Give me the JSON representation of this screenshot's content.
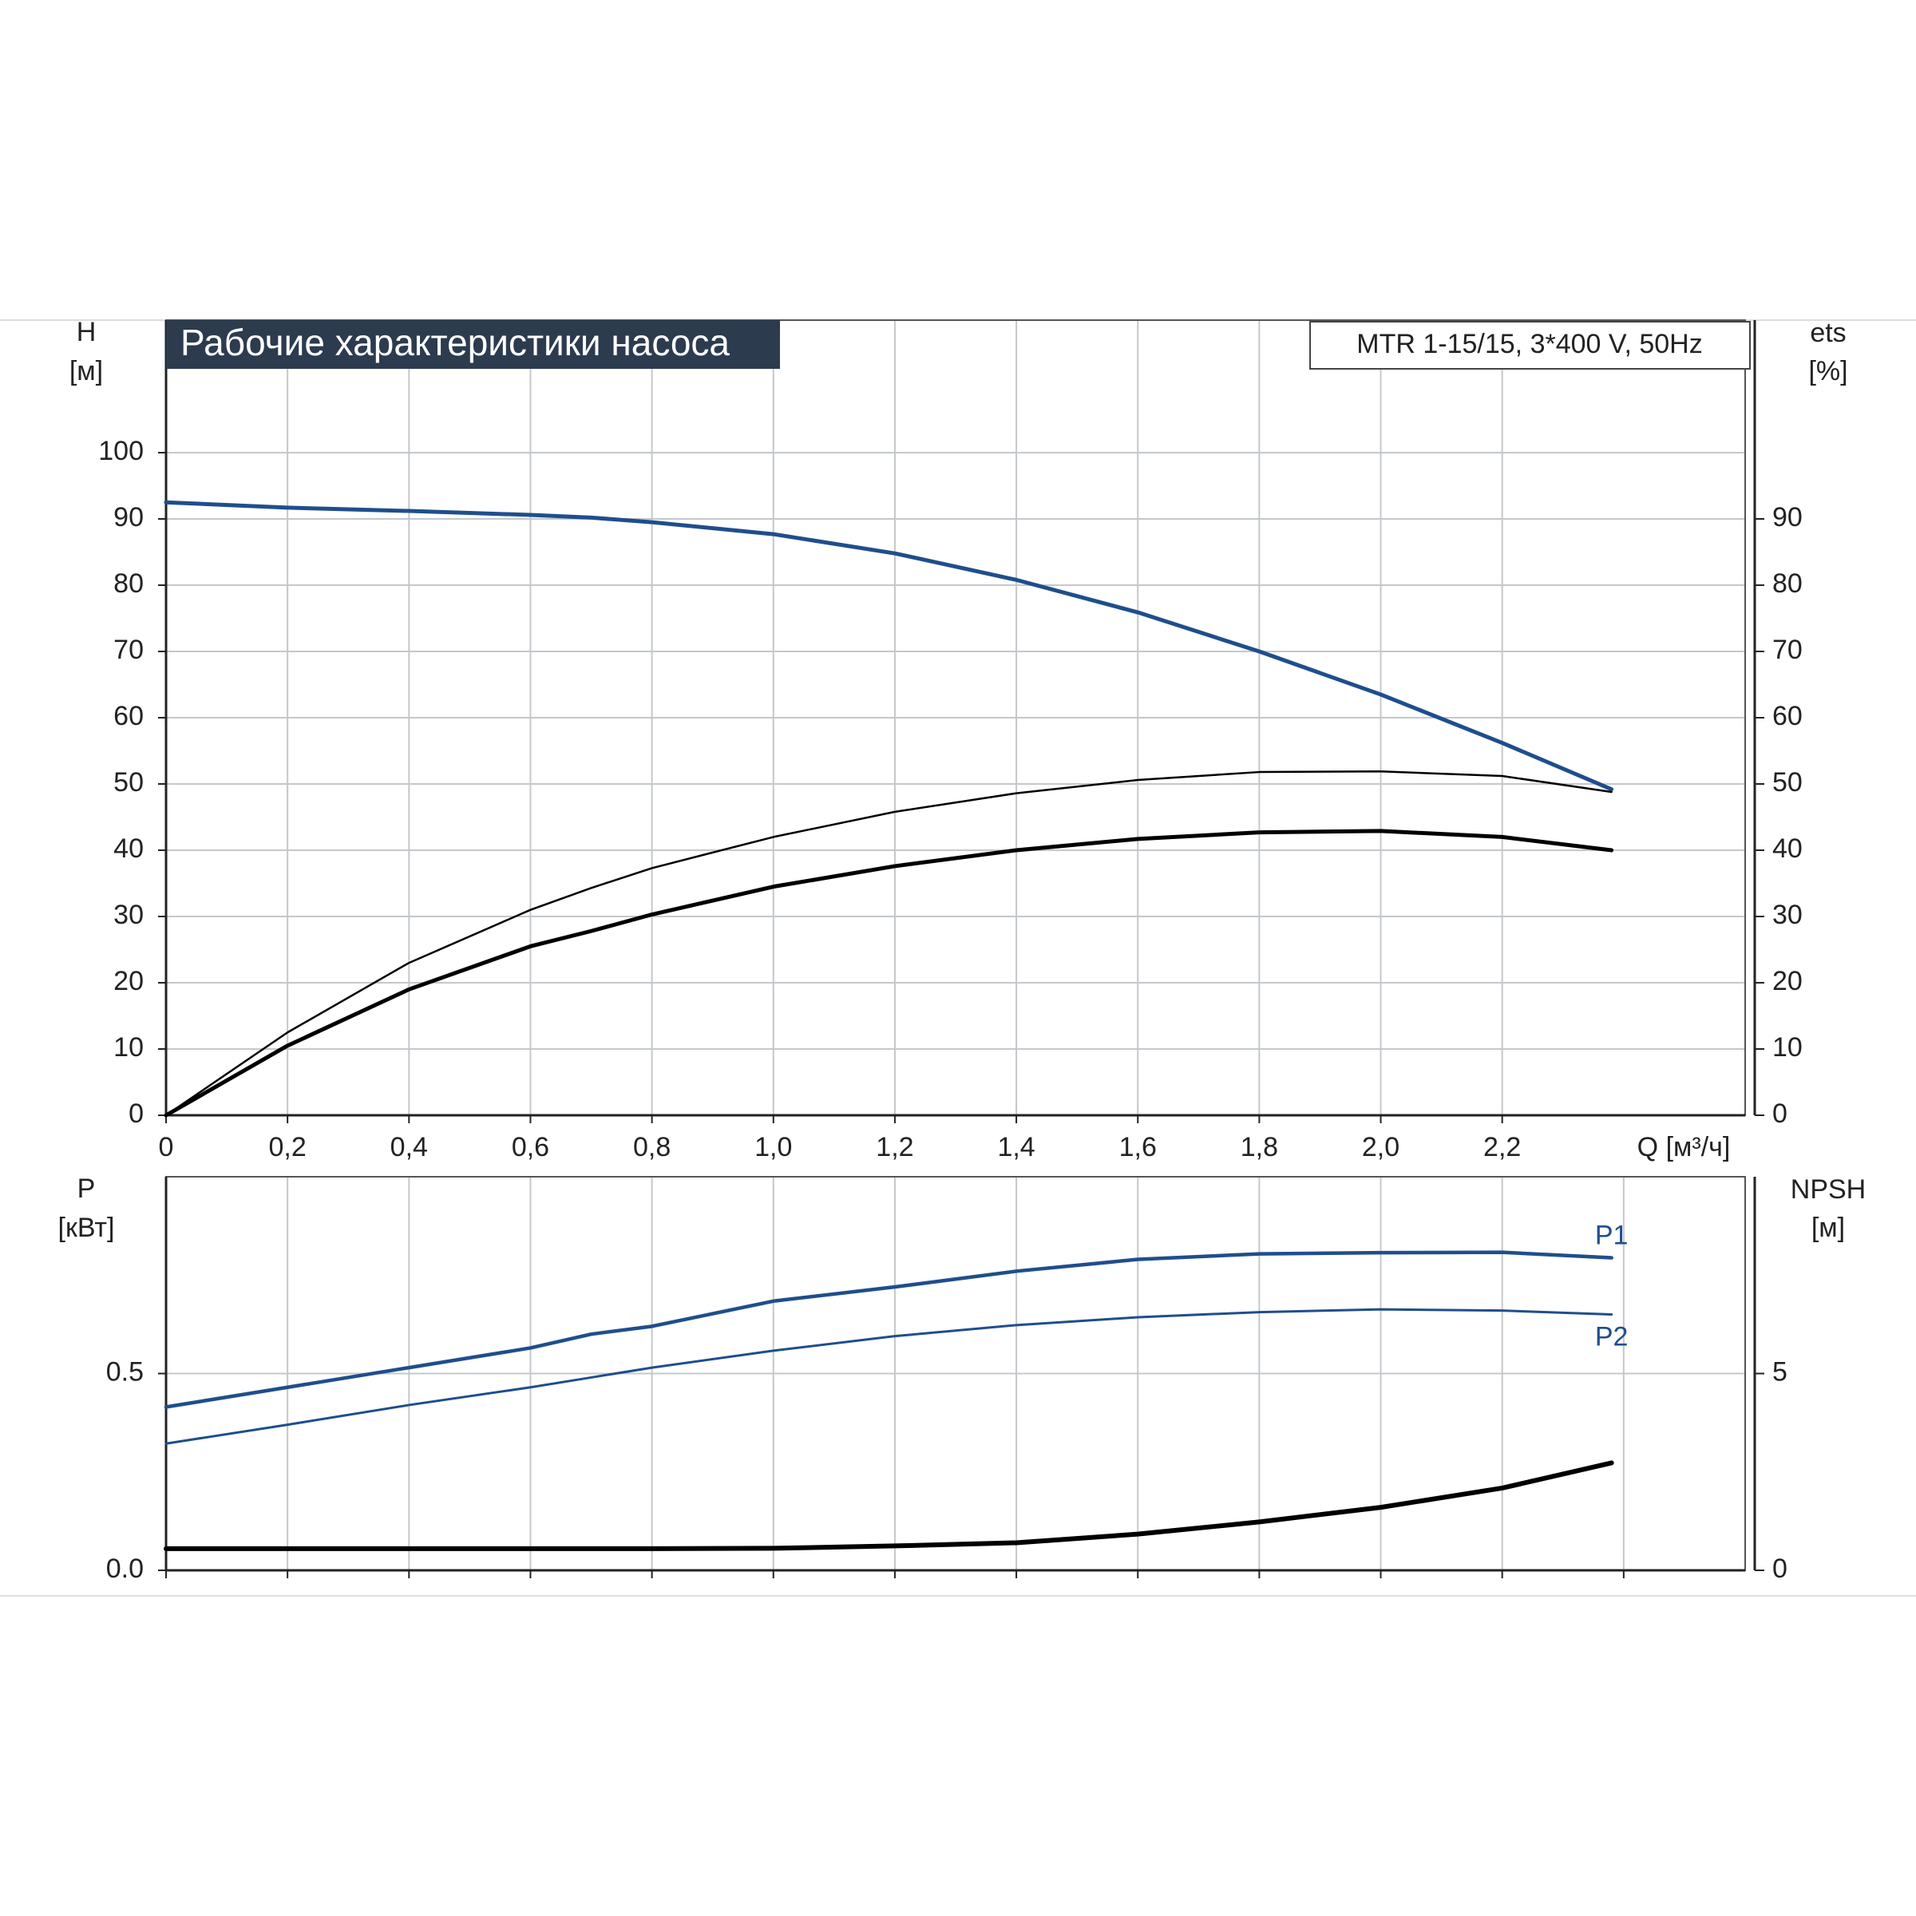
{
  "chart_data": [
    {
      "type": "line",
      "title": "Рабочие характеристики насоса",
      "subtitle": "MTR 1-15/15, 3*400 V, 50Hz",
      "y_label": "H",
      "y_unit": "[м]",
      "y2_label": "ets",
      "y2_unit": "[%]",
      "x_label": "Q [м³/ч]",
      "xlim": [
        0,
        2.6
      ],
      "xticks": [
        0,
        {
          "value": 0.2,
          "label": "0,2"
        },
        {
          "value": 0.4,
          "label": "0,4"
        },
        {
          "value": 0.6,
          "label": "0,6"
        },
        {
          "value": 0.8,
          "label": "0,8"
        },
        {
          "value": 1.0,
          "label": "1,0"
        },
        {
          "value": 1.2,
          "label": "1,2"
        },
        {
          "value": 1.4,
          "label": "1,4"
        },
        {
          "value": 1.6,
          "label": "1,6"
        },
        {
          "value": 1.8,
          "label": "1,8"
        },
        {
          "value": 2.0,
          "label": "2,0"
        },
        {
          "value": 2.2,
          "label": "2,2"
        }
      ],
      "ylim": [
        0,
        120
      ],
      "yticks": [
        0,
        10,
        20,
        30,
        40,
        50,
        60,
        70,
        80,
        90,
        100
      ],
      "y2lim": [
        0,
        120
      ],
      "y2ticks": [
        0,
        10,
        20,
        30,
        40,
        50,
        60,
        70,
        80,
        90
      ],
      "grid": true,
      "x": [
        0,
        0.2,
        0.4,
        0.6,
        0.7,
        0.8,
        1.0,
        1.2,
        1.4,
        1.6,
        1.8,
        2.0,
        2.2,
        2.38
      ],
      "series": [
        {
          "color": "#1f4e8c",
          "values": [
            92.5,
            91.7,
            91.2,
            90.6,
            90.2,
            89.5,
            87.7,
            84.8,
            80.8,
            75.9,
            70.0,
            63.5,
            56.2,
            49.2
          ]
        },
        {
          "color": "#000000",
          "axis": "y2",
          "values": [
            0,
            12.5,
            23,
            31,
            34.3,
            37.3,
            42,
            45.8,
            48.6,
            50.6,
            51.8,
            51.9,
            51.2,
            48.8
          ]
        },
        {
          "color": "#000000",
          "axis": "y2",
          "values": [
            0,
            10.5,
            19,
            25.5,
            27.8,
            30.3,
            34.5,
            37.6,
            40,
            41.7,
            42.7,
            42.9,
            42,
            40
          ]
        }
      ]
    },
    {
      "type": "line",
      "y_label": "P",
      "y_unit": "[кВт]",
      "y2_label": "NPSH",
      "y2_unit": "[м]",
      "xlim": [
        0,
        2.6
      ],
      "xticks": [
        0,
        0.2,
        0.4,
        0.6,
        0.8,
        1.0,
        1.2,
        1.4,
        1.6,
        1.8,
        2.0,
        2.2,
        2.4
      ],
      "ylim": [
        0,
        1
      ],
      "yticks": [
        {
          "value": 0,
          "label": "0.0"
        },
        0.5
      ],
      "y2lim": [
        0,
        10
      ],
      "y2ticks": [
        0,
        5
      ],
      "grid": true,
      "x": [
        0,
        0.2,
        0.4,
        0.6,
        0.7,
        0.8,
        1.0,
        1.2,
        1.4,
        1.6,
        1.8,
        2.0,
        2.2,
        2.38
      ],
      "series": [
        {
          "name": "P1",
          "color": "#1f4e8c",
          "values": [
            0.415,
            0.465,
            0.515,
            0.565,
            0.6,
            0.62,
            0.684,
            0.72,
            0.76,
            0.79,
            0.804,
            0.807,
            0.808,
            0.794
          ]
        },
        {
          "name": "P2",
          "color": "#1f4e8c",
          "values": [
            0.322,
            0.37,
            0.42,
            0.465,
            0.49,
            0.515,
            0.558,
            0.595,
            0.623,
            0.643,
            0.656,
            0.663,
            0.66,
            0.65
          ]
        },
        {
          "color": "#000000",
          "axis": "y2",
          "values": [
            0.55,
            0.55,
            0.55,
            0.55,
            0.55,
            0.55,
            0.56,
            0.62,
            0.7,
            0.92,
            1.23,
            1.6,
            2.09,
            2.73
          ]
        }
      ]
    }
  ]
}
